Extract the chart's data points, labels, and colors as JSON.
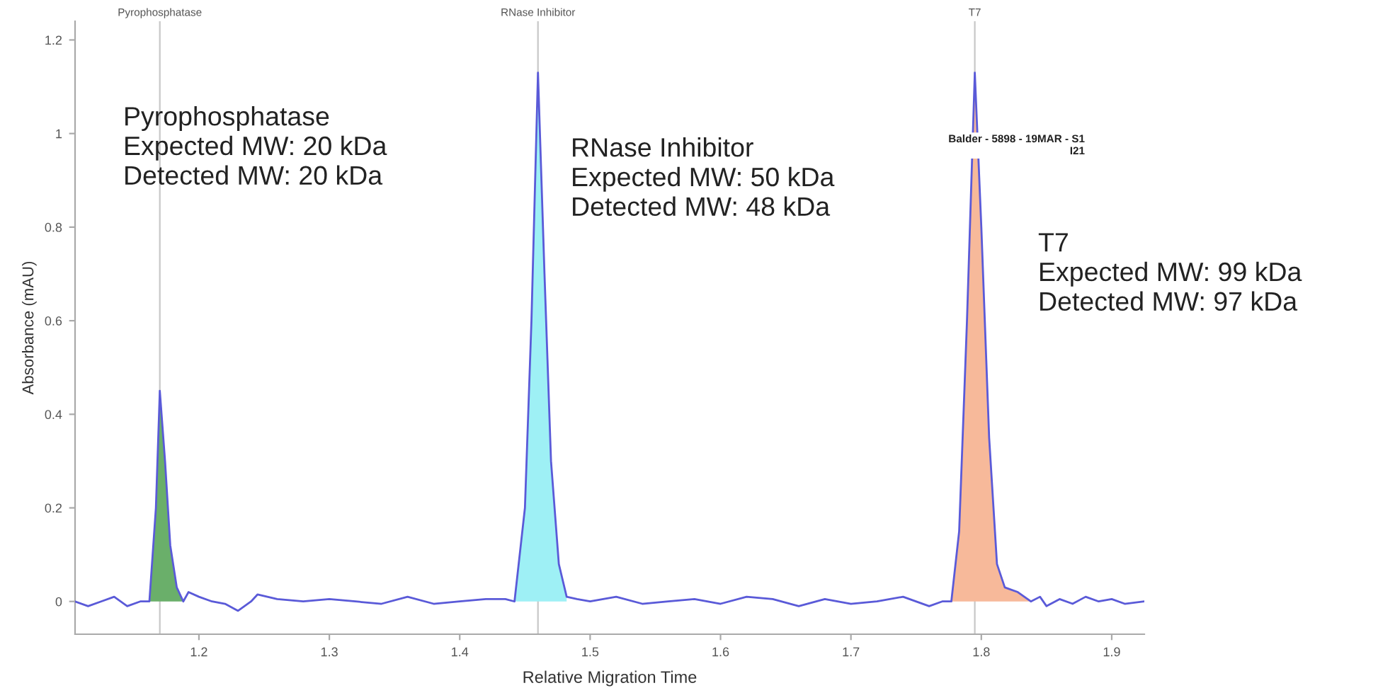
{
  "chart_data": {
    "type": "line",
    "xlabel": "Relative Migration Time",
    "ylabel": "Absorbance (mAU)",
    "xlim": [
      1.105,
      1.925
    ],
    "xticks": [
      1.2,
      1.3,
      1.4,
      1.5,
      1.6,
      1.7,
      1.8,
      1.9
    ],
    "ylim": [
      -0.07,
      1.24
    ],
    "yticks": [
      0,
      0.2,
      0.4,
      0.6,
      0.8,
      1,
      1.2
    ],
    "grid": false,
    "legend": false,
    "series": [
      {
        "type": "area",
        "color": "#6aaf6a",
        "x": [
          1.162,
          1.167,
          1.17,
          1.174,
          1.178,
          1.183,
          1.188
        ],
        "values": [
          0.0,
          0.2,
          0.45,
          0.3,
          0.12,
          0.03,
          0.0
        ]
      },
      {
        "type": "area",
        "color": "#9ef0f5",
        "x": [
          1.442,
          1.45,
          1.455,
          1.46,
          1.465,
          1.47,
          1.476,
          1.482
        ],
        "values": [
          0.0,
          0.2,
          0.6,
          1.13,
          0.7,
          0.3,
          0.08,
          0.01
        ]
      },
      {
        "type": "area",
        "color": "#f7b99a",
        "x": [
          1.777,
          1.783,
          1.789,
          1.795,
          1.8,
          1.806,
          1.812,
          1.818,
          1.828,
          1.838
        ],
        "values": [
          0.0,
          0.15,
          0.6,
          1.13,
          0.8,
          0.35,
          0.08,
          0.03,
          0.02,
          0.0
        ]
      },
      {
        "color": "#5a5ad8",
        "x": [
          1.105,
          1.115,
          1.125,
          1.135,
          1.145,
          1.155,
          1.162,
          1.167,
          1.17,
          1.174,
          1.178,
          1.183,
          1.188,
          1.192,
          1.2,
          1.21,
          1.22,
          1.23,
          1.24,
          1.245,
          1.26,
          1.28,
          1.3,
          1.32,
          1.34,
          1.36,
          1.38,
          1.4,
          1.42,
          1.435,
          1.442,
          1.45,
          1.455,
          1.46,
          1.465,
          1.47,
          1.476,
          1.482,
          1.49,
          1.5,
          1.52,
          1.54,
          1.56,
          1.58,
          1.6,
          1.62,
          1.64,
          1.66,
          1.68,
          1.7,
          1.72,
          1.74,
          1.76,
          1.77,
          1.777,
          1.783,
          1.789,
          1.795,
          1.8,
          1.806,
          1.812,
          1.818,
          1.828,
          1.838,
          1.845,
          1.85,
          1.86,
          1.87,
          1.88,
          1.89,
          1.9,
          1.91,
          1.925
        ],
        "values": [
          0.0,
          -0.01,
          0.0,
          0.01,
          -0.01,
          0.0,
          0.0,
          0.2,
          0.45,
          0.3,
          0.12,
          0.03,
          0.0,
          0.02,
          0.01,
          0.0,
          -0.005,
          -0.02,
          0.0,
          0.015,
          0.005,
          0.0,
          0.005,
          0.0,
          -0.005,
          0.01,
          -0.005,
          0.0,
          0.005,
          0.005,
          0.0,
          0.2,
          0.6,
          1.13,
          0.7,
          0.3,
          0.08,
          0.01,
          0.005,
          0.0,
          0.01,
          -0.005,
          0.0,
          0.005,
          -0.005,
          0.01,
          0.005,
          -0.01,
          0.005,
          -0.005,
          0.0,
          0.01,
          -0.01,
          0.0,
          0.0,
          0.15,
          0.6,
          1.13,
          0.8,
          0.35,
          0.08,
          0.03,
          0.02,
          0.0,
          0.01,
          -0.01,
          0.005,
          -0.005,
          0.01,
          0.0,
          0.005,
          -0.005,
          0.0
        ]
      }
    ],
    "ref_lines": [
      {
        "axis": "x",
        "value": 1.17,
        "label": "Pyrophosphatase",
        "color": "#c8c8c8"
      },
      {
        "axis": "x",
        "value": 1.46,
        "label": "RNase Inhibitor",
        "color": "#c8c8c8"
      },
      {
        "axis": "x",
        "value": 1.795,
        "label": "T7",
        "color": "#c8c8c8"
      }
    ],
    "annotations": [
      "Pyrophosphatase\nExpected MW: 20 kDa\nDetected MW: 20 kDa",
      "RNase Inhibitor\nExpected MW: 50 kDa\nDetected MW: 48 kDa",
      "T7\nExpected MW: 99 kDa\nDetected MW: 97 kDa",
      "Balder - 5898 - 19MAR - S1\nI21"
    ]
  }
}
